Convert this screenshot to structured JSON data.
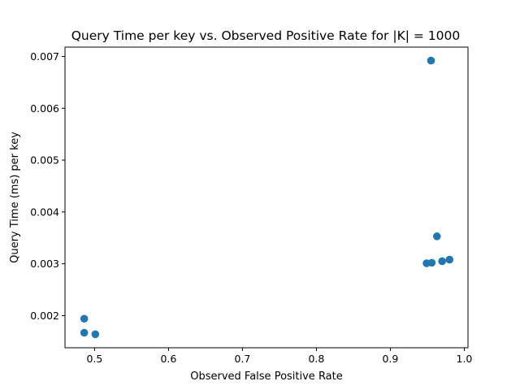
{
  "chart_data": {
    "type": "scatter",
    "title": "Query Time per key vs. Observed Positive Rate for |K| = 1000",
    "xlabel": "Observed False Positive Rate",
    "ylabel": "Query Time (ms) per key",
    "xlim": [
      0.46,
      1.005
    ],
    "ylim": [
      0.00138,
      0.00718
    ],
    "xticks": [
      0.5,
      0.6,
      0.7,
      0.8,
      0.9,
      1.0
    ],
    "xtick_labels": [
      "0.5",
      "0.6",
      "0.7",
      "0.8",
      "0.9",
      "1.0"
    ],
    "yticks": [
      0.002,
      0.003,
      0.004,
      0.005,
      0.006,
      0.007
    ],
    "ytick_labels": [
      "0.002",
      "0.003",
      "0.004",
      "0.005",
      "0.006",
      "0.007"
    ],
    "grid": false,
    "marker_color": "#1f77b4",
    "series": [
      {
        "points": [
          {
            "x": 0.486,
            "y": 0.00194
          },
          {
            "x": 0.486,
            "y": 0.00167
          },
          {
            "x": 0.501,
            "y": 0.00164
          },
          {
            "x": 0.949,
            "y": 0.00301
          },
          {
            "x": 0.956,
            "y": 0.00302
          },
          {
            "x": 0.97,
            "y": 0.00305
          },
          {
            "x": 0.98,
            "y": 0.00308
          },
          {
            "x": 0.963,
            "y": 0.00353
          },
          {
            "x": 0.955,
            "y": 0.00692
          }
        ]
      }
    ]
  }
}
